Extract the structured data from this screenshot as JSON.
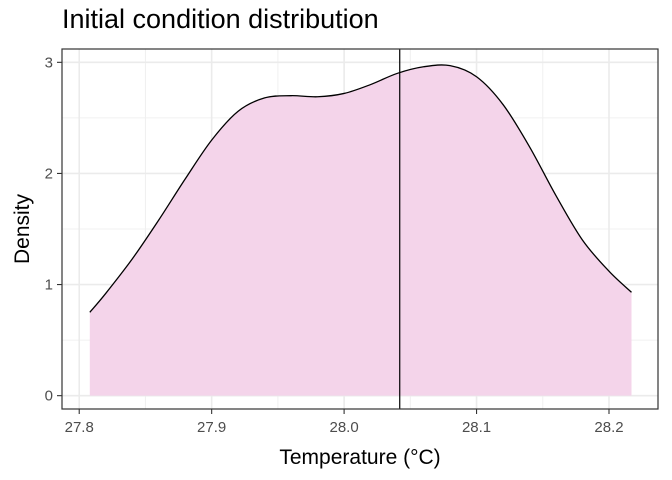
{
  "chart_data": {
    "type": "area",
    "title": "Initial condition distribution",
    "xlabel": "Temperature (°C)",
    "ylabel": "Density",
    "xlim": [
      27.787,
      28.237
    ],
    "ylim": [
      -0.12,
      3.12
    ],
    "x_ticks": [
      27.8,
      27.9,
      28.0,
      28.1,
      28.2
    ],
    "x_tick_labels": [
      "27.8",
      "27.9",
      "28.0",
      "28.1",
      "28.2"
    ],
    "y_ticks": [
      0,
      1,
      2,
      3
    ],
    "y_tick_labels": [
      "0",
      "1",
      "2",
      "3"
    ],
    "grid": true,
    "fill_color": "#f4d4ea",
    "line_color": "#000000",
    "x_min_grid": [
      27.85,
      27.95,
      28.05,
      28.15
    ],
    "y_min_grid": [
      0.5,
      1.5,
      2.5
    ],
    "vline": 28.042,
    "series": [
      {
        "x": [
          27.808,
          27.82,
          27.84,
          27.86,
          27.88,
          27.9,
          27.92,
          27.94,
          27.96,
          27.98,
          28.0,
          28.02,
          28.04,
          28.06,
          28.08,
          28.1,
          28.12,
          28.14,
          28.16,
          28.18,
          28.2,
          28.217
        ],
        "y": [
          0.75,
          0.92,
          1.23,
          1.58,
          1.95,
          2.3,
          2.56,
          2.68,
          2.7,
          2.69,
          2.72,
          2.8,
          2.9,
          2.96,
          2.97,
          2.87,
          2.62,
          2.24,
          1.8,
          1.4,
          1.12,
          0.93
        ]
      }
    ]
  }
}
